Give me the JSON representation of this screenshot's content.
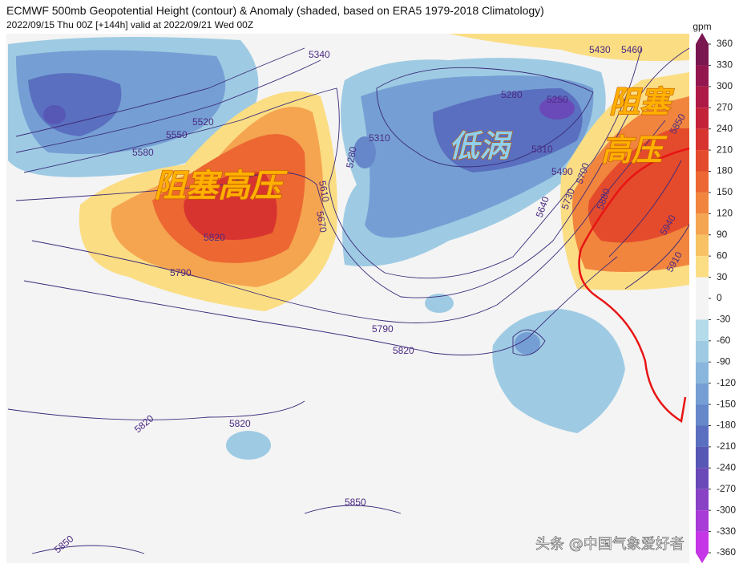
{
  "header": {
    "title": "ECMWF 500mb Geopotential Height (contour) & Anomaly (shaded, based on ERA5 1979-2018 Climatology)",
    "subtitle": "2022/09/15 Thu 00Z [+144h] valid at 2022/09/21 Wed 00Z"
  },
  "colorbar": {
    "unit": "gpm",
    "lim": [
      -360,
      360
    ],
    "ticks": [
      360,
      330,
      300,
      270,
      240,
      210,
      180,
      150,
      120,
      90,
      60,
      30,
      0,
      -30,
      -60,
      -90,
      -120,
      -150,
      -180,
      -210,
      -240,
      -270,
      -300,
      -330,
      -360
    ],
    "colors": [
      "#7a1650",
      "#93164f",
      "#ad1a45",
      "#c4223a",
      "#d8342f",
      "#e44b2c",
      "#ec6732",
      "#f1853e",
      "#f5a450",
      "#f8c264",
      "#fbdd83",
      "#f4f4f4",
      "#f4f4f4",
      "#b4dbe9",
      "#9ecbe3",
      "#89b6dc",
      "#759fd4",
      "#6688ca",
      "#5a6fbf",
      "#5757b5",
      "#6a4ab8",
      "#8942c6",
      "#a93bd6",
      "#c536e6"
    ]
  },
  "contour_labels": [
    5340,
    5430,
    5460,
    5520,
    5550,
    5580,
    5280,
    5310,
    5250,
    5280,
    5310,
    5490,
    5610,
    5670,
    5700,
    5730,
    5640,
    5880,
    5820,
    5790,
    5940,
    5910,
    5850,
    5790,
    5820,
    5820,
    5820,
    5850,
    5850
  ],
  "annotations": [
    "阻塞高压",
    "低涡",
    "阻塞",
    "高压"
  ],
  "watermark": "头条 @中国气象爱好者"
}
